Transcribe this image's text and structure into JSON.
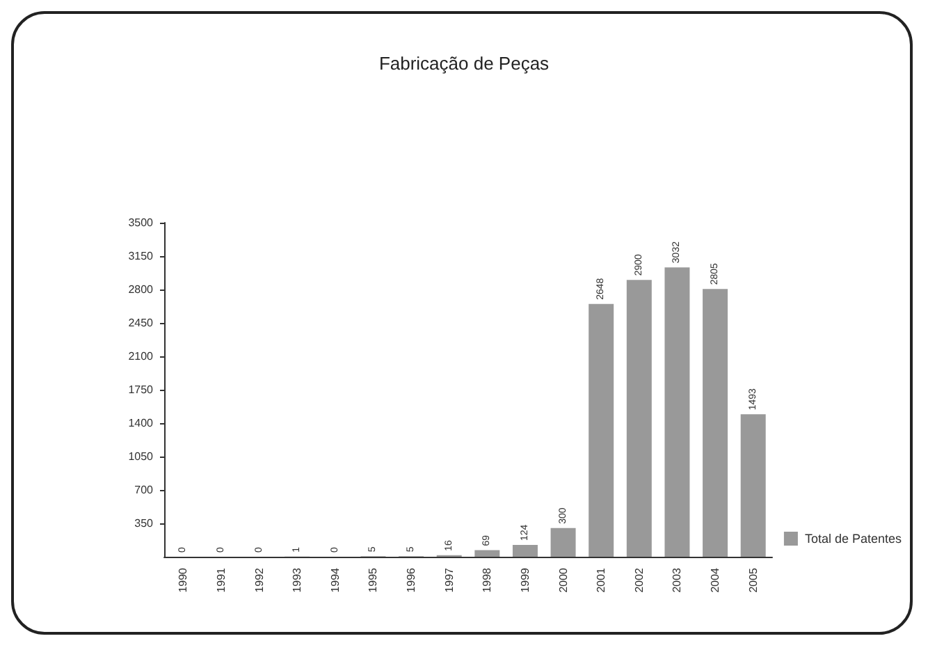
{
  "chart_data": {
    "type": "bar",
    "title": "Fabricação de Peças",
    "categories": [
      "1990",
      "1991",
      "1992",
      "1993",
      "1994",
      "1995",
      "1996",
      "1997",
      "1998",
      "1999",
      "2000",
      "2001",
      "2002",
      "2003",
      "2004",
      "2005"
    ],
    "series": [
      {
        "name": "Total de Patentes",
        "color": "#999999",
        "values": [
          0,
          0,
          0,
          1,
          0,
          5,
          5,
          16,
          69,
          124,
          300,
          2648,
          2900,
          3032,
          2805,
          1493
        ]
      }
    ],
    "ylim": [
      0,
      3500
    ],
    "yticks": [
      350,
      700,
      1050,
      1400,
      1750,
      2100,
      2450,
      2800,
      3150,
      3500
    ],
    "grid": false,
    "legend": "bottom right",
    "data_labels": true
  }
}
